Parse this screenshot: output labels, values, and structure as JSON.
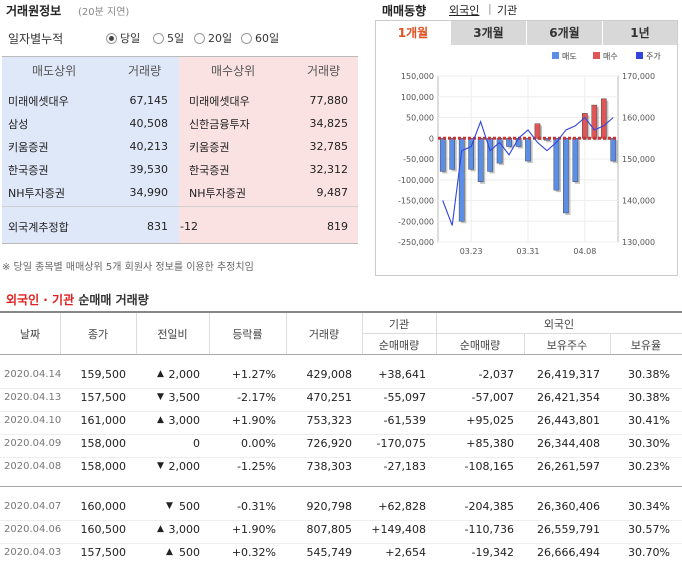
{
  "left": {
    "title": "거래원정보",
    "subtitle": "(20분 지연)",
    "accum_label": "일자별누적",
    "radios": [
      {
        "label": "당일",
        "selected": true
      },
      {
        "label": "5일",
        "selected": false
      },
      {
        "label": "20일",
        "selected": false
      },
      {
        "label": "60일",
        "selected": false
      }
    ],
    "headers": {
      "sell_top": "매도상위",
      "sell_vol": "거래량",
      "buy_top": "매수상위",
      "buy_vol": "거래량"
    },
    "rows": [
      {
        "sell_name": "미래에셋대우",
        "sell_vol": "67,145",
        "buy_name": "미래에셋대우",
        "buy_vol": "77,880"
      },
      {
        "sell_name": "삼성",
        "sell_vol": "40,508",
        "buy_name": "신한금융투자",
        "buy_vol": "34,825"
      },
      {
        "sell_name": "키움증권",
        "sell_vol": "40,213",
        "buy_name": "키움증권",
        "buy_vol": "32,785"
      },
      {
        "sell_name": "한국증권",
        "sell_vol": "39,530",
        "buy_name": "한국증권",
        "buy_vol": "32,312"
      },
      {
        "sell_name": "NH투자증권",
        "sell_vol": "34,990",
        "buy_name": "NH투자증권",
        "buy_vol": "9,487"
      }
    ],
    "summary": {
      "label": "외국계추정합",
      "sell": "831",
      "diff": "-12",
      "buy": "819"
    },
    "note": "※ 당일 종목별 매매상위 5개 회원사 정보를 이용한 추정치임"
  },
  "right": {
    "title": "매매동향",
    "tab_foreign": "외국인",
    "tab_separator": "|",
    "tab_inst": "기관",
    "period_tabs": [
      {
        "label": "1개월",
        "active": true
      },
      {
        "label": "3개월",
        "active": false
      },
      {
        "label": "6개월",
        "active": false
      },
      {
        "label": "1년",
        "active": false
      }
    ]
  },
  "chart_data": {
    "type": "bar",
    "legend": [
      "매도",
      "매수",
      "주가"
    ],
    "legend_position": "top-right",
    "colors": {
      "sell": "#5b8ee6",
      "buy": "#e05555",
      "price": "#3344dd"
    },
    "y_left": {
      "min": -250000,
      "max": 150000,
      "ticks": [
        "150,000",
        "100,000",
        "50,000",
        "0",
        "-50,000",
        "-100,000",
        "-150,000",
        "-200,000",
        "-250,000"
      ]
    },
    "y_right": {
      "min": 130000,
      "max": 170000,
      "ticks": [
        "170,000",
        "160,000",
        "150,000",
        "140,000",
        "130,000"
      ]
    },
    "x_ticks": [
      "03.23",
      "03.31",
      "04.08"
    ],
    "x_tick_index": [
      3,
      9,
      15
    ],
    "bars": [
      -80000,
      -75000,
      -200000,
      -75000,
      -105000,
      -80000,
      -60000,
      -20000,
      -20000,
      -55000,
      35000,
      -5000,
      -125000,
      -180000,
      -105000,
      60000,
      80000,
      95000,
      -55000
    ],
    "price": [
      140000,
      134000,
      152000,
      153000,
      159000,
      152000,
      154000,
      151000,
      155000,
      157000,
      154000,
      152000,
      154000,
      157000,
      158000,
      160000,
      157000,
      158000,
      160000
    ]
  },
  "bottom": {
    "title_red": "외국인 · 기관",
    "title_black": "순매매 거래량",
    "headers": {
      "date": "날짜",
      "close": "종가",
      "change": "전일비",
      "rate": "등락률",
      "volume": "거래량",
      "inst": "기관",
      "inst_net": "순매매량",
      "foreign": "외국인",
      "foreign_net": "순매매량",
      "foreign_hold": "보유주수",
      "foreign_ratio": "보유율"
    },
    "rows": [
      {
        "date": "2020.04.14",
        "close": "159,500",
        "dir": "up",
        "change": "2,000",
        "rate": "+1.27%",
        "volume": "429,008",
        "inst": "+38,641",
        "foreign": "-2,037",
        "hold": "26,419,317",
        "ratio": "30.38%"
      },
      {
        "date": "2020.04.13",
        "close": "157,500",
        "dir": "down",
        "change": "3,500",
        "rate": "-2.17%",
        "volume": "470,251",
        "inst": "-55,097",
        "foreign": "-57,007",
        "hold": "26,421,354",
        "ratio": "30.38%"
      },
      {
        "date": "2020.04.10",
        "close": "161,000",
        "dir": "up",
        "change": "3,000",
        "rate": "+1.90%",
        "volume": "753,323",
        "inst": "-61,539",
        "foreign": "+95,025",
        "hold": "26,443,801",
        "ratio": "30.41%"
      },
      {
        "date": "2020.04.09",
        "close": "158,000",
        "dir": "flat",
        "change": "0",
        "rate": "0.00%",
        "volume": "726,920",
        "inst": "-170,075",
        "foreign": "+85,380",
        "hold": "26,344,408",
        "ratio": "30.30%"
      },
      {
        "date": "2020.04.08",
        "close": "158,000",
        "dir": "down",
        "change": "2,000",
        "rate": "-1.25%",
        "volume": "738,303",
        "inst": "-27,183",
        "foreign": "-108,165",
        "hold": "26,261,597",
        "ratio": "30.23%"
      },
      {
        "date": "2020.04.07",
        "close": "160,000",
        "dir": "down",
        "change": "500",
        "rate": "-0.31%",
        "volume": "920,798",
        "inst": "+62,828",
        "foreign": "-204,385",
        "hold": "26,360,406",
        "ratio": "30.34%"
      },
      {
        "date": "2020.04.06",
        "close": "160,500",
        "dir": "up",
        "change": "3,000",
        "rate": "+1.90%",
        "volume": "807,805",
        "inst": "+149,408",
        "foreign": "-110,736",
        "hold": "26,559,791",
        "ratio": "30.57%"
      },
      {
        "date": "2020.04.03",
        "close": "157,500",
        "dir": "up",
        "change": "500",
        "rate": "+0.32%",
        "volume": "545,749",
        "inst": "+2,654",
        "foreign": "-19,342",
        "hold": "26,666,494",
        "ratio": "30.70%"
      }
    ]
  }
}
